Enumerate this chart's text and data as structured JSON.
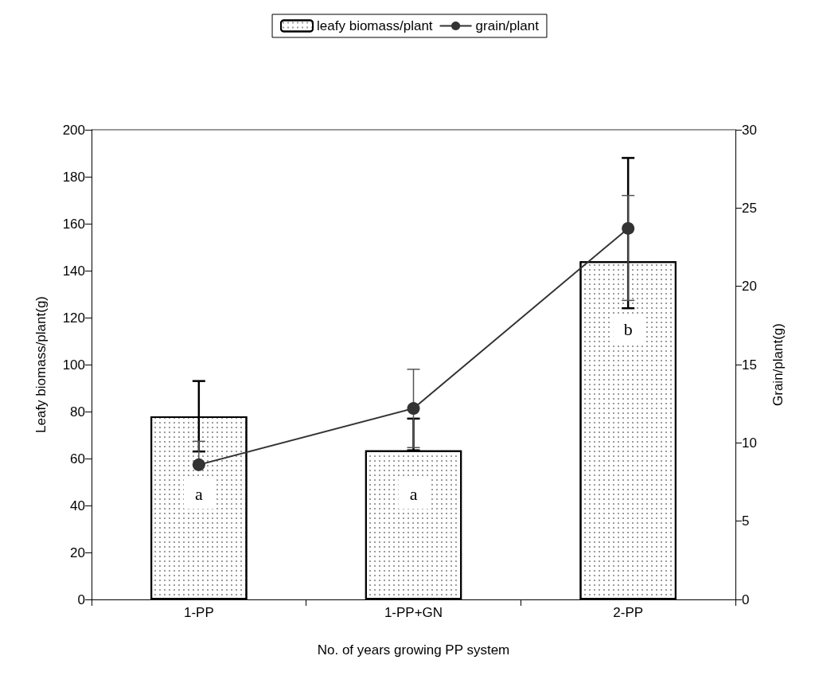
{
  "chart_data": {
    "type": "bar",
    "xlabel": "No. of years growing PP system",
    "ylabel": "Leafy biomass/plant(g)",
    "y2label": "Grain/plant(g)",
    "categories": [
      "1-PP",
      "1-PP+GN",
      "2-PP"
    ],
    "series": [
      {
        "name": "leafy biomass/plant",
        "color": "#ffffff",
        "values": [
          78,
          63.5,
          144
        ],
        "errors": [
          [
            63,
            93
          ],
          [
            63.5,
            77
          ],
          [
            124,
            188
          ]
        ]
      },
      {
        "name": "grain/plant",
        "type": "line",
        "axis": "y2",
        "color": "#333333",
        "marker": "circle",
        "values": [
          8.6,
          12.2,
          23.7
        ],
        "errors": [
          [
            8.6,
            10.1
          ],
          [
            9.7,
            14.7
          ],
          [
            19.1,
            25.8
          ]
        ]
      }
    ],
    "ylim": [
      0,
      200
    ],
    "yticks": [
      0,
      20,
      40,
      60,
      80,
      100,
      120,
      140,
      160,
      180,
      200
    ],
    "y2lim": [
      0,
      30
    ],
    "y2ticks": [
      0,
      5,
      10,
      15,
      20,
      25,
      30
    ],
    "annotations": [
      {
        "text": "a",
        "x": "1-PP",
        "y": 45
      },
      {
        "text": "a",
        "x": "1-PP+GN",
        "y": 45
      },
      {
        "text": "b",
        "x": "2-PP",
        "y": 115
      }
    ],
    "legend": "top",
    "grid": false
  }
}
